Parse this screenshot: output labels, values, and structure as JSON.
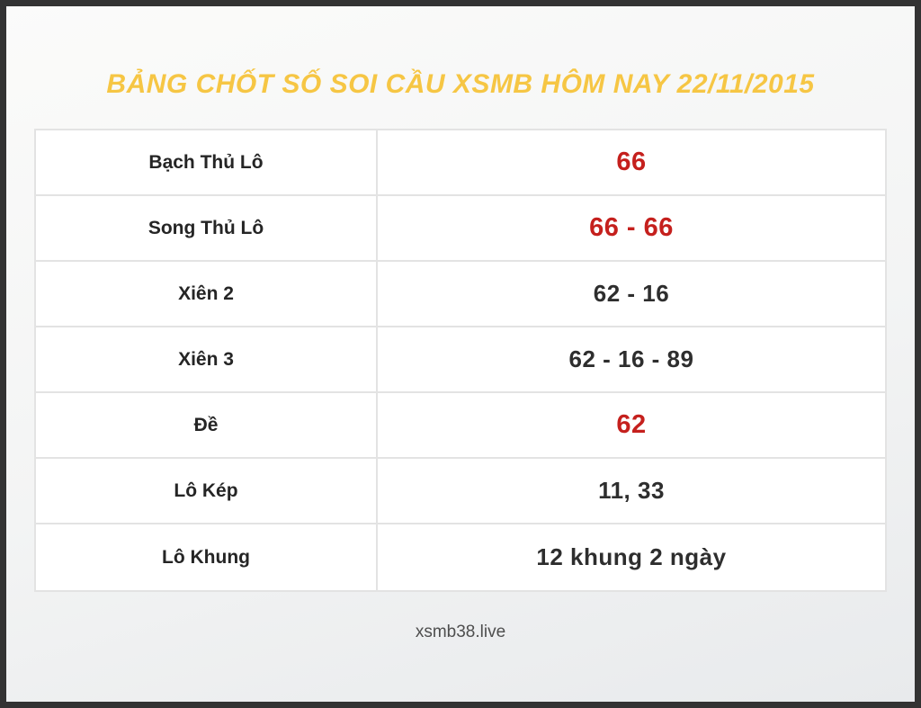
{
  "header": {
    "title": "BẢNG CHỐT SỐ SOI CẦU XSMB HÔM NAY 22/11/2015"
  },
  "table": {
    "rows": [
      {
        "label": "Bạch Thủ Lô",
        "value": "66",
        "highlight": true
      },
      {
        "label": "Song Thủ Lô",
        "value": "66 - 66",
        "highlight": true
      },
      {
        "label": "Xiên 2",
        "value": "62 - 16",
        "highlight": false
      },
      {
        "label": "Xiên 3",
        "value": "62 - 16 - 89",
        "highlight": false
      },
      {
        "label": "Đề",
        "value": "62",
        "highlight": true
      },
      {
        "label": "Lô Kép",
        "value": "11, 33",
        "highlight": false
      },
      {
        "label": "Lô Khung",
        "value": "12 khung 2 ngày",
        "highlight": false
      }
    ]
  },
  "footer": {
    "site": "xsmb38.live"
  },
  "colors": {
    "title": "#f6c644",
    "highlight": "#c5201d",
    "frame": "#333333"
  }
}
